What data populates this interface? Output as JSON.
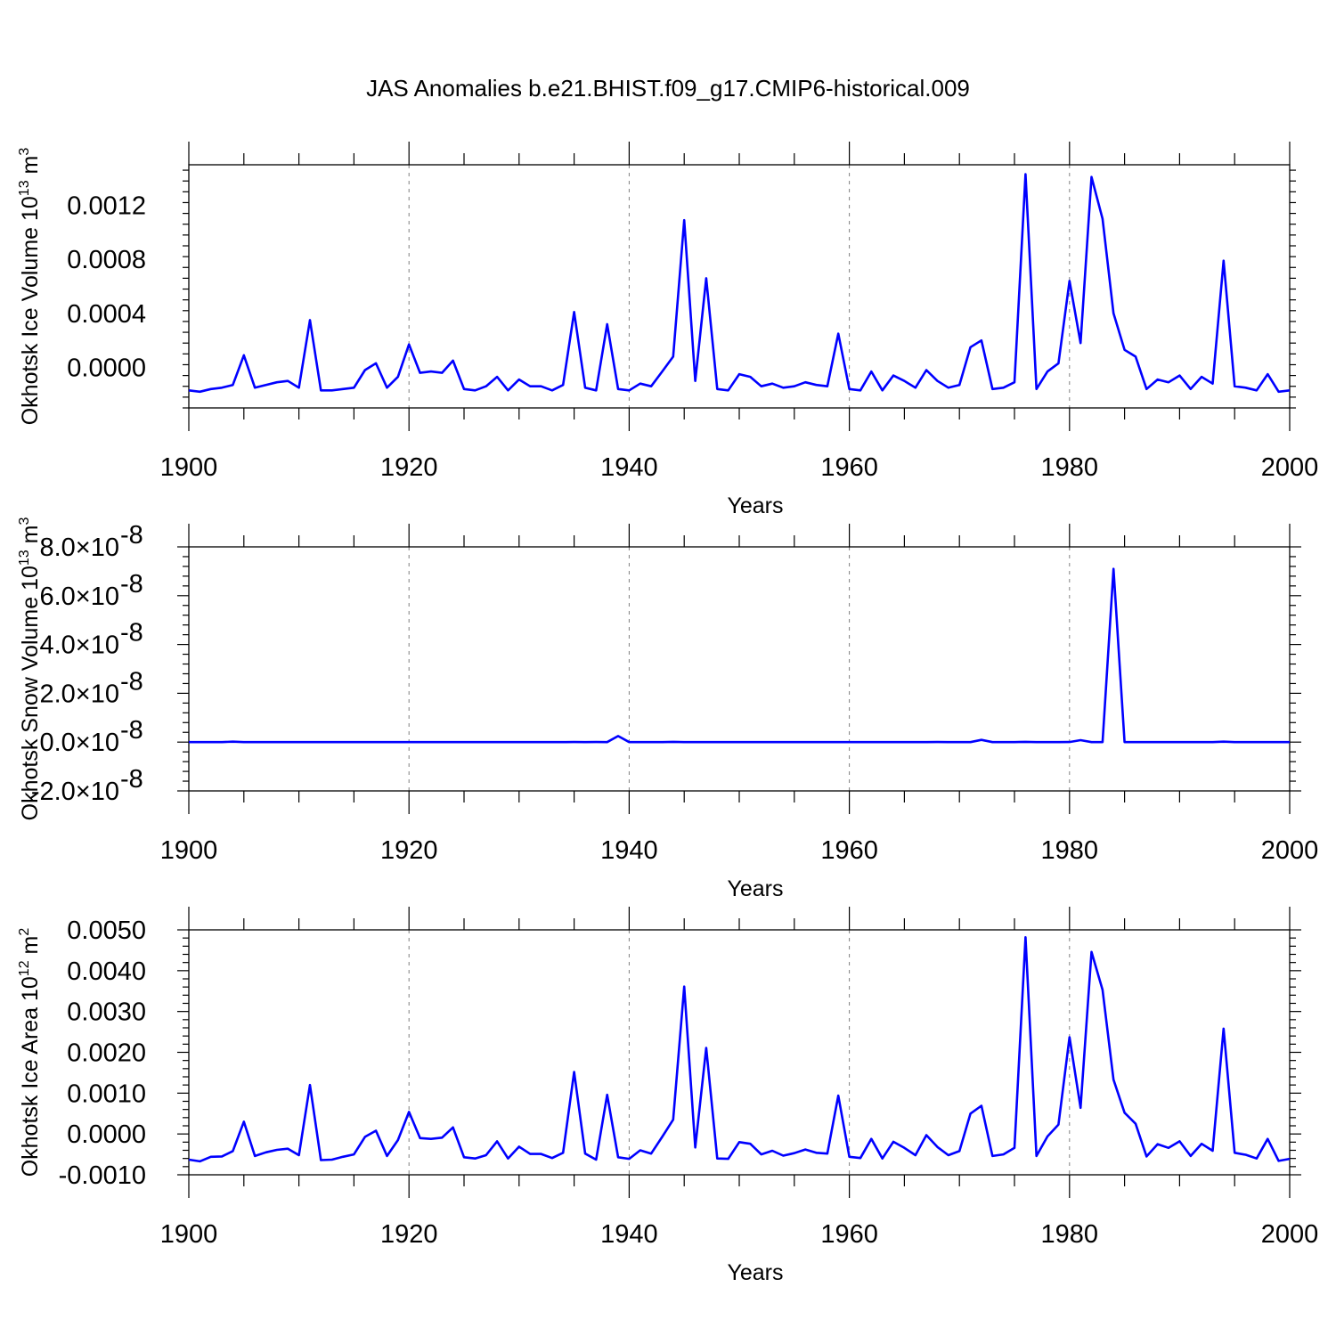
{
  "title": "JAS Anomalies b.e21.BHIST.f09_g17.CMIP6-historical.009",
  "colors": {
    "line": "#0000ff",
    "axis": "#000000",
    "grid": "#808080"
  },
  "chart_data": [
    {
      "id": "ice-volume",
      "type": "line",
      "ylabel": "Okhotsk Ice Volume 10",
      "ylabel_sup": "13",
      "ylabel_unit": " m",
      "ylabel_unit_sup": "3",
      "xlabel": "Years",
      "xlim": [
        1900,
        2000
      ],
      "ylim": [
        -0.0003,
        0.0015
      ],
      "xticks": [
        1900,
        1920,
        1940,
        1960,
        1980,
        2000
      ],
      "xtick_labels": [
        "1900",
        "1920",
        "1940",
        "1960",
        "1980",
        "2000"
      ],
      "yticks": [
        0.0,
        0.0004,
        0.0008,
        0.0012
      ],
      "ytick_labels": [
        "0.0000",
        "0.0004",
        "0.0008",
        "0.0012"
      ],
      "grid_x": [
        1920,
        1940,
        1960,
        1980
      ],
      "series": [
        {
          "name": "Okhotsk Ice Volume",
          "x_start": 1900,
          "values": [
            -0.00017,
            -0.00018,
            -0.00016,
            -0.00015,
            -0.00013,
            9e-05,
            -0.00015,
            -0.00013,
            -0.00011,
            -0.0001,
            -0.00015,
            0.00035,
            -0.00017,
            -0.00017,
            -0.00016,
            -0.00015,
            -2e-05,
            3e-05,
            -0.00015,
            -7e-05,
            0.00017,
            -4e-05,
            -3e-05,
            -4e-05,
            5e-05,
            -0.00016,
            -0.00017,
            -0.00014,
            -7e-05,
            -0.00017,
            -9e-05,
            -0.00014,
            -0.00014,
            -0.00017,
            -0.00013,
            0.00041,
            -0.00015,
            -0.00017,
            0.00032,
            -0.00016,
            -0.00017,
            -0.00012,
            -0.00014,
            -3e-05,
            8e-05,
            0.00109,
            -0.0001,
            0.00066,
            -0.00016,
            -0.00017,
            -5e-05,
            -7e-05,
            -0.00014,
            -0.00012,
            -0.00015,
            -0.00014,
            -0.00011,
            -0.00013,
            -0.00014,
            0.00025,
            -0.00016,
            -0.00017,
            -3e-05,
            -0.00017,
            -6e-05,
            -0.0001,
            -0.00015,
            -2e-05,
            -0.0001,
            -0.00015,
            -0.00013,
            0.00015,
            0.0002,
            -0.00016,
            -0.00015,
            -0.00011,
            0.00143,
            -0.00016,
            -3e-05,
            3e-05,
            0.00064,
            0.00018,
            0.00141,
            0.0011,
            0.0004,
            0.00013,
            8e-05,
            -0.00016,
            -9e-05,
            -0.00011,
            -6e-05,
            -0.00016,
            -7e-05,
            -0.00012,
            0.00079,
            -0.00014,
            -0.00015,
            -0.00017,
            -5e-05,
            -0.00018,
            -0.00017
          ]
        }
      ]
    },
    {
      "id": "snow-volume",
      "type": "line",
      "ylabel": "Okhotsk Snow Volume 10",
      "ylabel_sup": "13",
      "ylabel_unit": " m",
      "ylabel_unit_sup": "3",
      "xlabel": "Years",
      "xlim": [
        1900,
        2000
      ],
      "ylim": [
        -2e-08,
        8e-08
      ],
      "xticks": [
        1900,
        1920,
        1940,
        1960,
        1980,
        2000
      ],
      "xtick_labels": [
        "1900",
        "1920",
        "1940",
        "1960",
        "1980",
        "2000"
      ],
      "yticks": [
        -2e-08,
        0.0,
        2e-08,
        4e-08,
        6e-08,
        8e-08
      ],
      "ytick_labels": [
        "-2.0×10",
        "0.0×10",
        "2.0×10",
        "4.0×10",
        "6.0×10",
        "8.0×10"
      ],
      "ytick_exponent": "-8",
      "grid_x": [
        1920,
        1940,
        1960,
        1980
      ],
      "series": [
        {
          "name": "Okhotsk Snow Volume",
          "x_start": 1900,
          "values": [
            0,
            0,
            0,
            0,
            2e-10,
            0,
            0,
            0,
            0,
            0,
            0,
            0,
            0,
            0,
            0,
            0,
            0,
            0,
            0,
            0,
            0,
            0,
            0,
            0,
            0,
            0,
            0,
            0,
            0,
            0,
            0,
            0,
            0,
            0,
            0,
            5e-11,
            0,
            5e-11,
            0,
            2.5e-09,
            0,
            0,
            0,
            0,
            1e-10,
            0,
            0,
            0,
            0,
            0,
            0,
            0,
            0,
            0,
            0,
            0,
            0,
            0,
            0,
            0,
            0,
            0,
            0,
            0,
            0,
            0,
            0,
            0,
            5e-11,
            0,
            0,
            0,
            9e-10,
            0,
            0,
            0,
            1e-10,
            0,
            0,
            0,
            5e-11,
            8e-10,
            0,
            0,
            7.1e-08,
            0,
            0,
            0,
            0,
            0,
            0,
            0,
            0,
            0,
            2e-10,
            0,
            0,
            0,
            0,
            0,
            0
          ]
        }
      ]
    },
    {
      "id": "ice-area",
      "type": "line",
      "ylabel": "Okhotsk Ice Area 10",
      "ylabel_sup": "12",
      "ylabel_unit": " m",
      "ylabel_unit_sup": "2",
      "xlabel": "Years",
      "xlim": [
        1900,
        2000
      ],
      "ylim": [
        -0.001,
        0.005
      ],
      "xticks": [
        1900,
        1920,
        1940,
        1960,
        1980,
        2000
      ],
      "xtick_labels": [
        "1900",
        "1920",
        "1940",
        "1960",
        "1980",
        "2000"
      ],
      "yticks": [
        -0.001,
        0.0,
        0.001,
        0.002,
        0.003,
        0.004,
        0.005
      ],
      "ytick_labels": [
        "-0.0010",
        "0.0000",
        "0.0010",
        "0.0020",
        "0.0030",
        "0.0040",
        "0.0050"
      ],
      "grid_x": [
        1920,
        1940,
        1960,
        1980
      ],
      "series": [
        {
          "name": "Okhotsk Ice Area",
          "x_start": 1900,
          "values": [
            -0.00063,
            -0.00067,
            -0.00056,
            -0.00055,
            -0.00042,
            0.0003,
            -0.00054,
            -0.00045,
            -0.00039,
            -0.00036,
            -0.00052,
            0.0012,
            -0.00064,
            -0.00063,
            -0.00056,
            -0.0005,
            -7e-05,
            8e-05,
            -0.00054,
            -0.00015,
            0.00054,
            -0.0001,
            -0.00012,
            -9e-05,
            0.00016,
            -0.00057,
            -0.0006,
            -0.00052,
            -0.00018,
            -0.0006,
            -0.00031,
            -0.00049,
            -0.00049,
            -0.00059,
            -0.00046,
            0.00152,
            -0.00048,
            -0.00063,
            0.00096,
            -0.00057,
            -0.00061,
            -0.0004,
            -0.00048,
            -7e-05,
            0.00035,
            0.00361,
            -0.00033,
            0.00211,
            -0.0006,
            -0.00061,
            -0.0002,
            -0.00024,
            -0.0005,
            -0.00041,
            -0.00053,
            -0.00047,
            -0.00038,
            -0.00046,
            -0.00048,
            0.00094,
            -0.00056,
            -0.00059,
            -0.00012,
            -0.0006,
            -0.00019,
            -0.00034,
            -0.00052,
            -3e-05,
            -0.00032,
            -0.00052,
            -0.00042,
            0.0005,
            0.00069,
            -0.00054,
            -0.0005,
            -0.00034,
            0.00482,
            -0.00054,
            -6e-05,
            0.00023,
            0.00237,
            0.00064,
            0.00446,
            0.00353,
            0.00133,
            0.00052,
            0.00025,
            -0.00055,
            -0.00025,
            -0.00034,
            -0.00018,
            -0.00054,
            -0.00024,
            -0.00041,
            0.00258,
            -0.00046,
            -0.00051,
            -0.0006,
            -0.00012,
            -0.00066,
            -0.00061
          ]
        }
      ]
    }
  ]
}
